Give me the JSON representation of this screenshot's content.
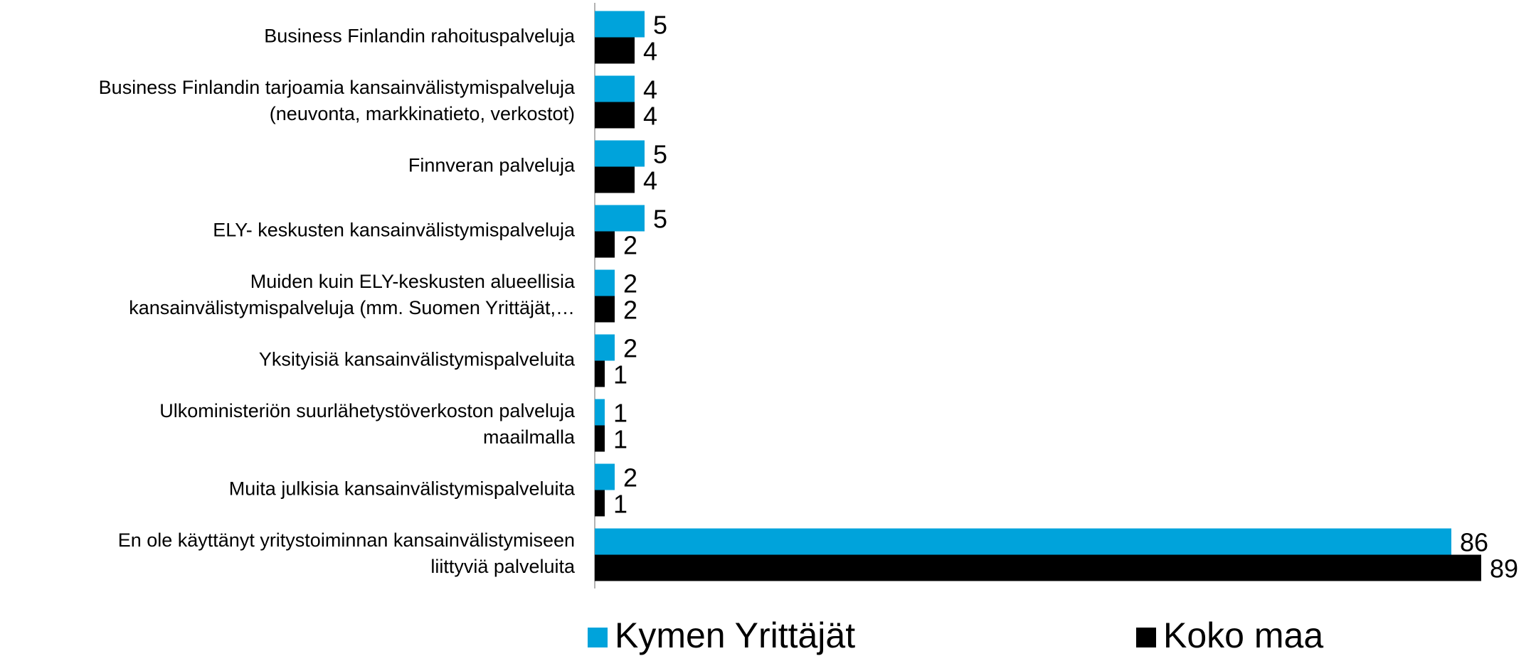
{
  "chart_data": {
    "type": "hbar",
    "categories": [
      [
        "Business Finlandin rahoituspalveluja"
      ],
      [
        "Business Finlandin tarjoamia kansainvälistymispalveluja",
        "(neuvonta, markkinatieto, verkostot)"
      ],
      [
        "Finnveran palveluja"
      ],
      [
        "ELY- keskusten kansainvälistymispalveluja"
      ],
      [
        "Muiden kuin ELY-keskusten alueellisia",
        "kansainvälistymispalveluja (mm. Suomen Yrittäjät,…"
      ],
      [
        "Yksityisiä kansainvälistymispalveluita"
      ],
      [
        "Ulkoministeriön suurlähetystöverkoston palveluja",
        "maailmalla"
      ],
      [
        "Muita julkisia kansainvälistymispalveluita"
      ],
      [
        "En ole käyttänyt yritystoiminnan kansainvälistymiseen",
        "liittyviä palveluita"
      ]
    ],
    "series": [
      {
        "name": "Kymen Yrittäjät",
        "color": "#00a3db",
        "values": [
          5,
          4,
          5,
          5,
          2,
          2,
          1,
          2,
          86
        ]
      },
      {
        "name": "Koko maa",
        "color": "#000000",
        "values": [
          4,
          4,
          4,
          2,
          2,
          1,
          1,
          1,
          89
        ]
      }
    ],
    "legend": "bottom"
  }
}
